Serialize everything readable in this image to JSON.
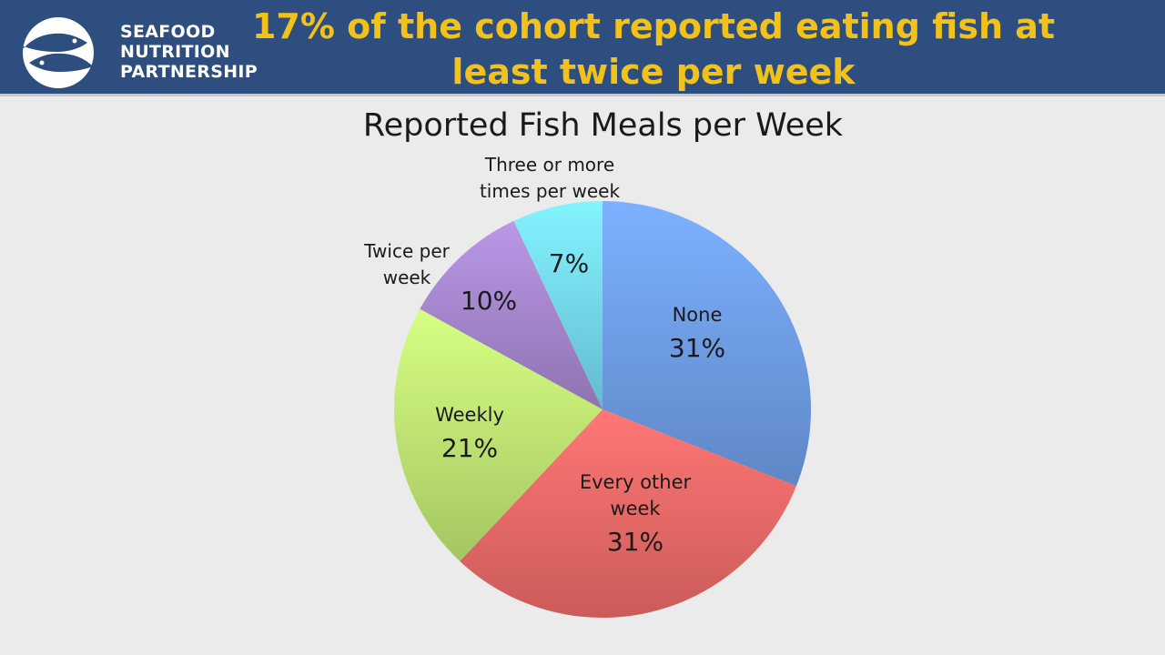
{
  "header": {
    "logo_lines": [
      "SEAFOOD",
      "NUTRITION",
      "PARTNERSHIP"
    ],
    "title_lines": [
      "17% of the cohort reported eating fish at",
      "least twice per week"
    ]
  },
  "colors": {
    "header_bg": "#2d4e7e",
    "title_text": "#f2c21b",
    "background": "#ebebeb"
  },
  "chart_data": {
    "type": "pie",
    "title": "Reported Fish Meals per Week",
    "start": "12 o'clock",
    "direction": "clockwise",
    "slices": [
      {
        "label": [
          "None"
        ],
        "value": 31,
        "value_label": "31%",
        "color": "#6a96dc",
        "label_position": "inside"
      },
      {
        "label": [
          "Every other",
          "week"
        ],
        "value": 31,
        "value_label": "31%",
        "color": "#e06563",
        "label_position": "inside"
      },
      {
        "label": [
          "Weekly"
        ],
        "value": 21,
        "value_label": "21%",
        "color": "#b6dc6e",
        "label_position": "inside"
      },
      {
        "label": [
          "Twice per",
          "week"
        ],
        "value": 10,
        "value_label": "10%",
        "color": "#9e80c4",
        "label_position": "outside"
      },
      {
        "label": [
          "Three or more",
          "times per week"
        ],
        "value": 7,
        "value_label": "7%",
        "color": "#6fcfe6",
        "label_position": "outside"
      }
    ]
  }
}
